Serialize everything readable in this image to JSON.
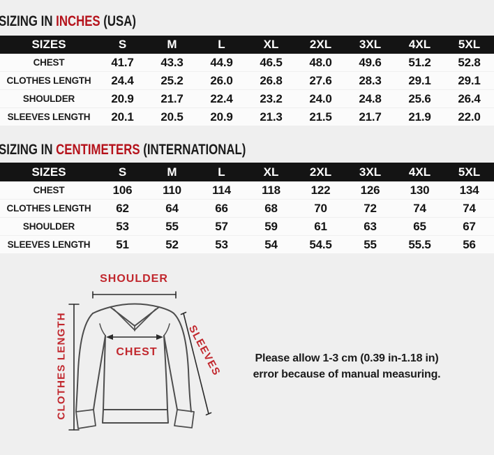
{
  "page": {
    "bg": "#efefef",
    "title_red": "#b5121b",
    "diagram_red": "#c1272d",
    "header_bg": "#141414"
  },
  "sections": [
    {
      "title_prefix": "SIZING IN ",
      "title_highlight": "INCHES",
      "title_suffix": " (USA)",
      "table": {
        "header": [
          "SIZES",
          "S",
          "M",
          "L",
          "XL",
          "2XL",
          "3XL",
          "4XL",
          "5XL"
        ],
        "rows": [
          {
            "label": "CHEST",
            "values": [
              "41.7",
              "43.3",
              "44.9",
              "46.5",
              "48.0",
              "49.6",
              "51.2",
              "52.8"
            ]
          },
          {
            "label": "CLOTHES LENGTH",
            "values": [
              "24.4",
              "25.2",
              "26.0",
              "26.8",
              "27.6",
              "28.3",
              "29.1",
              "29.1"
            ]
          },
          {
            "label": "SHOULDER",
            "values": [
              "20.9",
              "21.7",
              "22.4",
              "23.2",
              "24.0",
              "24.8",
              "25.6",
              "26.4"
            ]
          },
          {
            "label": "SLEEVES LENGTH",
            "values": [
              "20.1",
              "20.5",
              "20.9",
              "21.3",
              "21.5",
              "21.7",
              "21.9",
              "22.0"
            ]
          }
        ]
      }
    },
    {
      "title_prefix": "SIZING IN ",
      "title_highlight": "CENTIMETERS",
      "title_suffix": " (INTERNATIONAL)",
      "table": {
        "header": [
          "SIZES",
          "S",
          "M",
          "L",
          "XL",
          "2XL",
          "3XL",
          "4XL",
          "5XL"
        ],
        "rows": [
          {
            "label": "CHEST",
            "values": [
              "106",
              "110",
              "114",
              "118",
              "122",
              "126",
              "130",
              "134"
            ]
          },
          {
            "label": "CLOTHES LENGTH",
            "values": [
              "62",
              "64",
              "66",
              "68",
              "70",
              "72",
              "74",
              "74"
            ]
          },
          {
            "label": "SHOULDER",
            "values": [
              "53",
              "55",
              "57",
              "59",
              "61",
              "63",
              "65",
              "67"
            ]
          },
          {
            "label": "SLEEVES LENGTH",
            "values": [
              "51",
              "52",
              "53",
              "54",
              "54.5",
              "55",
              "55.5",
              "56"
            ]
          }
        ]
      }
    }
  ],
  "diagram": {
    "shoulder_label": "SHOULDER",
    "clothes_length_label": "CLOTHES LENGTH",
    "chest_label": "CHEST",
    "sleeves_label": "SLEEVES"
  },
  "note": {
    "line1": "Please allow 1-3 cm (0.39 in-1.18 in)",
    "line2": "error because of manual measuring."
  }
}
